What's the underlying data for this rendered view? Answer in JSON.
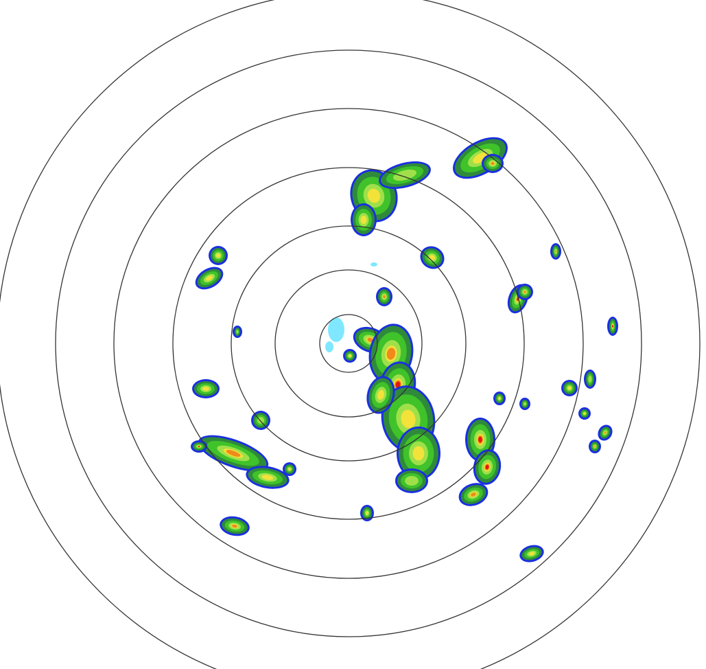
{
  "radar": {
    "range_ring_count": 7,
    "colors": {
      "background": "#ffffff",
      "ring": "#333333",
      "light_blue": "#7fe8ff",
      "blue": "#1a2fe0",
      "dark_green": "#2f8a3a",
      "green": "#3fc22a",
      "light_green": "#9fe04a",
      "yellow": "#f2e23a",
      "orange": "#f08a1a",
      "red": "#e01a10"
    }
  }
}
